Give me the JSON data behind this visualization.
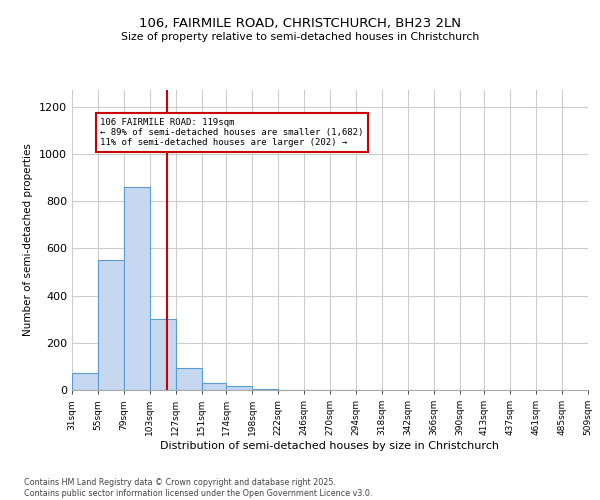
{
  "title_line1": "106, FAIRMILE ROAD, CHRISTCHURCH, BH23 2LN",
  "title_line2": "Size of property relative to semi-detached houses in Christchurch",
  "xlabel": "Distribution of semi-detached houses by size in Christchurch",
  "ylabel": "Number of semi-detached properties",
  "bar_color": "#c5d8f0",
  "bar_edge_color": "#5b9bd5",
  "bin_edges": [
    31,
    55,
    79,
    103,
    127,
    151,
    174,
    198,
    222,
    246,
    270,
    294,
    318,
    342,
    366,
    390,
    413,
    437,
    461,
    485,
    509
  ],
  "bar_heights": [
    70,
    550,
    860,
    300,
    95,
    30,
    18,
    5,
    2,
    1,
    1,
    0,
    0,
    0,
    0,
    0,
    0,
    0,
    0,
    0
  ],
  "property_size": 119,
  "red_line_color": "#cc0000",
  "annotation_box_color": "#cc0000",
  "annotation_text_line1": "106 FAIRMILE ROAD: 119sqm",
  "annotation_text_line2": "← 89% of semi-detached houses are smaller (1,682)",
  "annotation_text_line3": "11% of semi-detached houses are larger (202) →",
  "ylim": [
    0,
    1270
  ],
  "yticks": [
    0,
    200,
    400,
    600,
    800,
    1000,
    1200
  ],
  "background_color": "#ffffff",
  "grid_color": "#cccccc",
  "footnote_line1": "Contains HM Land Registry data © Crown copyright and database right 2025.",
  "footnote_line2": "Contains public sector information licensed under the Open Government Licence v3.0.",
  "tick_labels": [
    "31sqm",
    "55sqm",
    "79sqm",
    "103sqm",
    "127sqm",
    "151sqm",
    "174sqm",
    "198sqm",
    "222sqm",
    "246sqm",
    "270sqm",
    "294sqm",
    "318sqm",
    "342sqm",
    "366sqm",
    "390sqm",
    "413sqm",
    "437sqm",
    "461sqm",
    "485sqm",
    "509sqm"
  ]
}
